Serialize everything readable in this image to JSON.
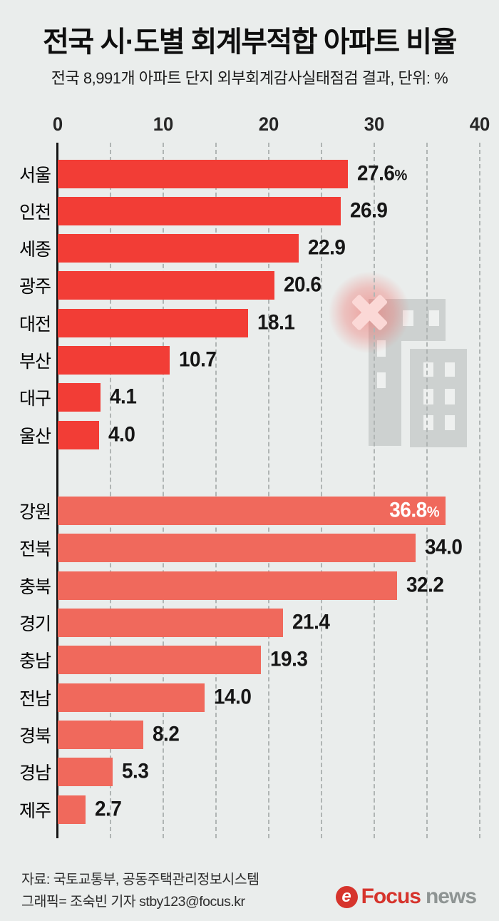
{
  "header": {
    "title_parts": [
      {
        "text": "전국 시·도별 ",
        "bold": false
      },
      {
        "text": "회계부적합 아파트",
        "bold": true
      },
      {
        "text": " 비율",
        "bold": false
      }
    ],
    "subtitle": "전국 8,991개 아파트 단지 외부회계감사실태점검 결과, 단위: %"
  },
  "chart_data": {
    "type": "bar",
    "orientation": "horizontal",
    "title": "전국 시·도별 회계부적합 아파트 비율",
    "subtitle": "전국 8,991개 아파트 단지 외부회계감사실태점검 결과, 단위: %",
    "unit": "%",
    "xlim": [
      0,
      41.8
    ],
    "ticks": [
      0,
      10,
      20,
      30,
      40
    ],
    "grid_step": 5,
    "grid_on": true,
    "groups": [
      {
        "name": "group-1-cities",
        "color": "#f23d36",
        "items": [
          {
            "label": "서울",
            "value": 27.6,
            "display": "27.6",
            "show_pct": true,
            "inside": false
          },
          {
            "label": "인천",
            "value": 26.9,
            "display": "26.9",
            "show_pct": false,
            "inside": false
          },
          {
            "label": "세종",
            "value": 22.9,
            "display": "22.9",
            "show_pct": false,
            "inside": false
          },
          {
            "label": "광주",
            "value": 20.6,
            "display": "20.6",
            "show_pct": false,
            "inside": false
          },
          {
            "label": "대전",
            "value": 18.1,
            "display": "18.1",
            "show_pct": false,
            "inside": false
          },
          {
            "label": "부산",
            "value": 10.7,
            "display": "10.7",
            "show_pct": false,
            "inside": false
          },
          {
            "label": "대구",
            "value": 4.1,
            "display": "4.1",
            "show_pct": false,
            "inside": false
          },
          {
            "label": "울산",
            "value": 4.0,
            "display": "4.0",
            "show_pct": false,
            "inside": false
          }
        ]
      },
      {
        "name": "group-2-provinces",
        "color": "#f0695c",
        "items": [
          {
            "label": "강원",
            "value": 36.8,
            "display": "36.8",
            "show_pct": true,
            "inside": true
          },
          {
            "label": "전북",
            "value": 34.0,
            "display": "34.0",
            "show_pct": false,
            "inside": false
          },
          {
            "label": "충북",
            "value": 32.2,
            "display": "32.2",
            "show_pct": false,
            "inside": false
          },
          {
            "label": "경기",
            "value": 21.4,
            "display": "21.4",
            "show_pct": false,
            "inside": false
          },
          {
            "label": "충남",
            "value": 19.3,
            "display": "19.3",
            "show_pct": false,
            "inside": false
          },
          {
            "label": "전남",
            "value": 14.0,
            "display": "14.0",
            "show_pct": false,
            "inside": false
          },
          {
            "label": "경북",
            "value": 8.2,
            "display": "8.2",
            "show_pct": false,
            "inside": false
          },
          {
            "label": "경남",
            "value": 5.3,
            "display": "5.3",
            "show_pct": false,
            "inside": false
          },
          {
            "label": "제주",
            "value": 2.7,
            "display": "2.7",
            "show_pct": false,
            "inside": false
          }
        ]
      }
    ],
    "legend": null,
    "annotations": {
      "x_mark_icon": "✕",
      "x_mark_color": "#fbd8d6",
      "glow_color": "#f05a54",
      "building_color": "#cdd1d0",
      "window_color": "#eef0ef"
    }
  },
  "colors": {
    "background": "#eaedec",
    "axis": "#141414",
    "gridline": "#b0b5b4",
    "bar_red": "#f23d36",
    "bar_salmon": "#f0695c",
    "value_label": "#161616",
    "value_label_inside": "#ffffff"
  },
  "footer": {
    "source": "자료: 국토교통부, 공동주택관리정보시스템",
    "credit": "그래픽= 조숙빈 기자 stby123@focus.kr",
    "logo": {
      "icon": "focus-swirl-icon",
      "icon_glyph": "e",
      "brand": "Focus",
      "suffix": "news",
      "brand_color": "#d6342c",
      "suffix_color": "#8e9493"
    }
  }
}
